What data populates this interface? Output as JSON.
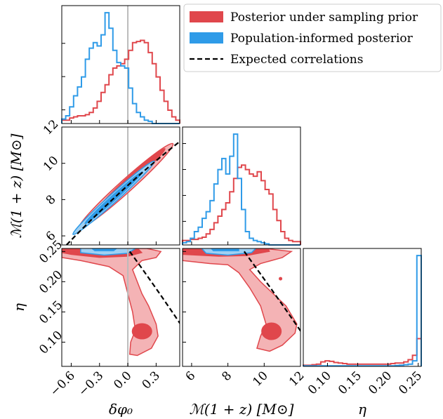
{
  "chart_data": {
    "type": "corner",
    "colors": {
      "sampling": "#e0474c",
      "sampling_light": "#f4b3b5",
      "population": "#2f9be8",
      "population_light": "#9fd0f3",
      "expected": "#000000",
      "truth_line": "#bbbbbb"
    },
    "legend": [
      {
        "label": "Posterior under sampling prior",
        "color": "#e0474c",
        "kind": "patch"
      },
      {
        "label": "Population-informed posterior",
        "color": "#2f9be8",
        "kind": "patch"
      },
      {
        "label": "Expected correlations",
        "color": "#000000",
        "kind": "dashed"
      }
    ],
    "params": [
      {
        "key": "dphi",
        "label": "δφ₀",
        "range": [
          -0.7,
          0.55
        ],
        "ticks": [
          -0.6,
          -0.3,
          0.0,
          0.3
        ],
        "ticklabels": [
          "−0.6",
          "−0.3",
          "0.0",
          "0.3"
        ]
      },
      {
        "key": "mc",
        "label": "ℳ(1 + z) [M⊙]",
        "range": [
          5.5,
          12.0
        ],
        "ticks": [
          6,
          8,
          10,
          12
        ],
        "ticklabels": [
          "6",
          "8",
          "10",
          "12"
        ]
      },
      {
        "key": "eta",
        "label": "η",
        "range": [
          0.06,
          0.255
        ],
        "ticks": [
          0.1,
          0.15,
          0.2,
          0.25
        ],
        "ticklabels": [
          "0.10",
          "0.15",
          "0.20",
          "0.25"
        ]
      }
    ],
    "truth_line_dphi": 0.0,
    "hist_dphi": {
      "sampling": [
        0.03,
        0.03,
        0.05,
        0.06,
        0.07,
        0.07,
        0.08,
        0.1,
        0.14,
        0.2,
        0.28,
        0.35,
        0.44,
        0.5,
        0.52,
        0.54,
        0.58,
        0.66,
        0.73,
        0.74,
        0.75,
        0.73,
        0.64,
        0.54,
        0.42,
        0.3,
        0.2,
        0.12,
        0.06,
        0.03
      ],
      "population": [
        0.04,
        0.07,
        0.15,
        0.25,
        0.33,
        0.42,
        0.58,
        0.68,
        0.73,
        0.7,
        0.8,
        1.0,
        0.86,
        0.66,
        0.55,
        0.52,
        0.5,
        0.32,
        0.18,
        0.1,
        0.06,
        0.03,
        0.02,
        0.0,
        0.0,
        0.0,
        0.0,
        0.0,
        0.0,
        0.0
      ]
    },
    "hist_mc": {
      "sampling": [
        0.04,
        0.04,
        0.05,
        0.05,
        0.06,
        0.07,
        0.1,
        0.14,
        0.2,
        0.26,
        0.32,
        0.38,
        0.48,
        0.6,
        0.7,
        0.72,
        0.68,
        0.64,
        0.62,
        0.66,
        0.58,
        0.5,
        0.46,
        0.32,
        0.22,
        0.12,
        0.06,
        0.04,
        0.03,
        0.03
      ],
      "population": [
        0.02,
        0.03,
        0.06,
        0.12,
        0.16,
        0.24,
        0.3,
        0.4,
        0.55,
        0.68,
        0.78,
        0.64,
        0.8,
        1.0,
        0.6,
        0.32,
        0.12,
        0.06,
        0.04,
        0.03,
        0.02,
        0.01,
        0.0,
        0.0,
        0.0,
        0.0,
        0.0,
        0.0,
        0.0,
        0.0
      ]
    },
    "hist_eta": {
      "sampling": [
        0.01,
        0.01,
        0.015,
        0.02,
        0.04,
        0.05,
        0.045,
        0.035,
        0.03,
        0.025,
        0.02,
        0.02,
        0.02,
        0.02,
        0.02,
        0.02,
        0.02,
        0.02,
        0.02,
        0.02,
        0.025,
        0.03,
        0.03,
        0.04,
        0.06,
        0.1,
        0.25
      ],
      "population": [
        0.005,
        0.005,
        0.005,
        0.005,
        0.005,
        0.005,
        0.005,
        0.005,
        0.005,
        0.005,
        0.005,
        0.005,
        0.005,
        0.005,
        0.005,
        0.005,
        0.005,
        0.005,
        0.005,
        0.005,
        0.005,
        0.008,
        0.01,
        0.015,
        0.02,
        0.05,
        1.0
      ]
    }
  }
}
